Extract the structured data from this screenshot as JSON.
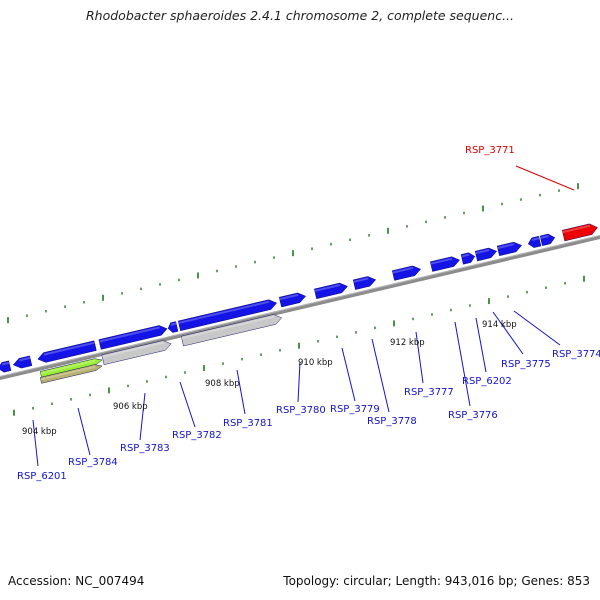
{
  "title": "Rhodobacter sphaeroides 2.4.1 chromosome 2, complete sequenc...",
  "footer": {
    "accession": "Accession: NC_007494",
    "summary": "Topology: circular; Length: 943,016 bp; Genes: 853"
  },
  "colors": {
    "forward_gene": "#1414e6",
    "selected_gene": "#ee0000",
    "pseudo_gene": "#c8c8c8",
    "feature_green": "#99ee33",
    "feature_olive": "#b8b070",
    "backbone": "#8c8c8c",
    "tick": "#1a7a1a",
    "label_normal": "#1414cc",
    "label_selected": "#dd0000"
  },
  "kbp_labels": [
    {
      "text": "904 kbp",
      "kb": 904
    },
    {
      "text": "906 kbp",
      "kb": 906
    },
    {
      "text": "908 kbp",
      "kb": 908
    },
    {
      "text": "910 kbp",
      "kb": 910
    },
    {
      "text": "912 kbp",
      "kb": 912
    },
    {
      "text": "914 kbp",
      "kb": 914
    }
  ],
  "gene_labels": [
    {
      "text": "RSP_3771",
      "selected": true
    },
    {
      "text": "RSP_6201",
      "selected": false
    },
    {
      "text": "RSP_3784",
      "selected": false
    },
    {
      "text": "RSP_3783",
      "selected": false
    },
    {
      "text": "RSP_3782",
      "selected": false
    },
    {
      "text": "RSP_3781",
      "selected": false
    },
    {
      "text": "RSP_3780",
      "selected": false
    },
    {
      "text": "RSP_3779",
      "selected": false
    },
    {
      "text": "RSP_3778",
      "selected": false
    },
    {
      "text": "RSP_3777",
      "selected": false
    },
    {
      "text": "RSP_3776",
      "selected": false
    },
    {
      "text": "RSP_6202",
      "selected": false
    },
    {
      "text": "RSP_3775",
      "selected": false
    },
    {
      "text": "RSP_3774",
      "selected": false
    }
  ]
}
